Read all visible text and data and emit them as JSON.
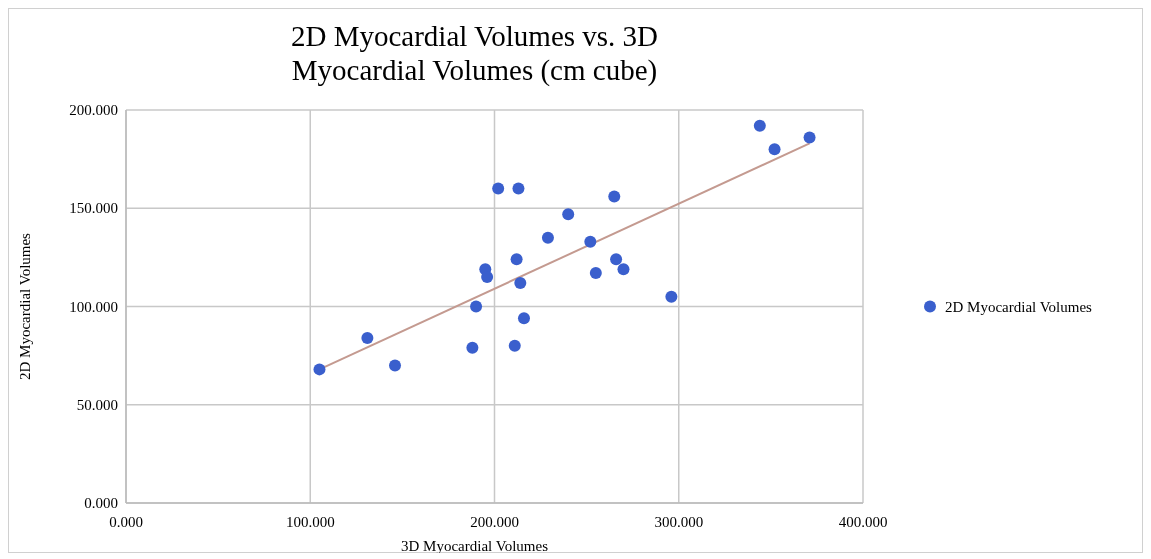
{
  "chart_data": {
    "type": "scatter",
    "title": "2D Myocardial Volumes vs. 3D Myocardial Volumes (cm cube)",
    "xlabel": "3D Myocardial Volumes",
    "ylabel": "2D Myocardial Volumes",
    "xlim": [
      0,
      400
    ],
    "ylim": [
      0,
      200
    ],
    "xticks": [
      {
        "value": 0,
        "label": "0.000"
      },
      {
        "value": 100,
        "label": "100.000"
      },
      {
        "value": 200,
        "label": "200.000"
      },
      {
        "value": 300,
        "label": "300.000"
      },
      {
        "value": 400,
        "label": "400.000"
      }
    ],
    "yticks": [
      {
        "value": 0,
        "label": "0.000"
      },
      {
        "value": 50,
        "label": "50.000"
      },
      {
        "value": 100,
        "label": "100.000"
      },
      {
        "value": 150,
        "label": "150.000"
      },
      {
        "value": 200,
        "label": "200.000"
      }
    ],
    "grid": true,
    "legend": "right",
    "marker": "circle",
    "series": [
      {
        "type": "line",
        "marker": "none",
        "color": "#c49a90",
        "x": [
          105,
          371
        ],
        "values": [
          68,
          183
        ]
      },
      {
        "name": "2D Myocardial Volumes",
        "color": "#3a5fcd",
        "x": [
          105,
          131,
          146,
          188,
          190,
          195,
          196,
          202,
          211,
          212,
          213,
          214,
          216,
          229,
          240,
          252,
          255,
          265,
          266,
          270,
          296,
          344,
          352,
          371
        ],
        "values": [
          68,
          84,
          70,
          79,
          100,
          119,
          115,
          160,
          80,
          124,
          160,
          112,
          94,
          135,
          147,
          133,
          117,
          156,
          124,
          119,
          105,
          192,
          180,
          186
        ]
      }
    ]
  }
}
